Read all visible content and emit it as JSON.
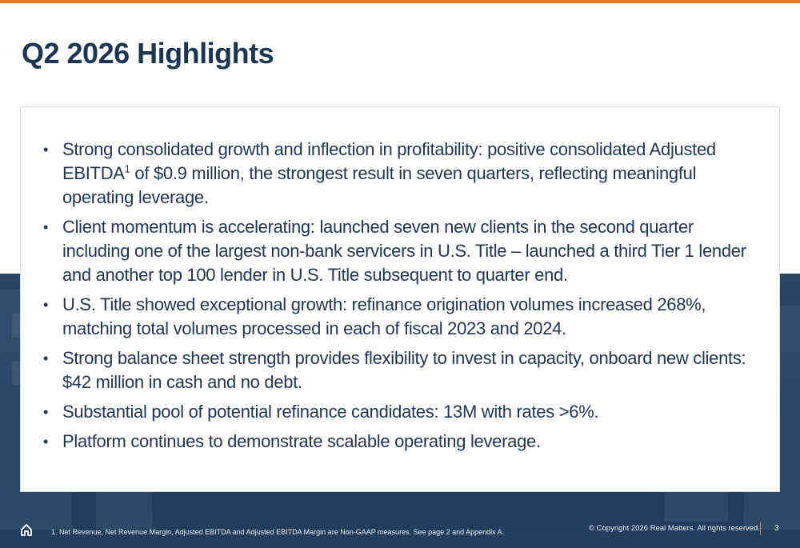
{
  "title": "Q2 2026 Highlights",
  "bullets": [
    {
      "text_before": "Strong consolidated growth and inflection in profitability: positive consolidated Adjusted EBITDA",
      "footnote_ref": "1",
      "text_after": " of $0.9 million, the strongest result in seven quarters, reflecting meaningful operating leverage."
    },
    {
      "text_before": "Client momentum is accelerating: launched seven new clients in the second quarter including one of the largest non-bank servicers in U.S. Title – launched a third Tier 1 lender and another top 100 lender in U.S. Title subsequent to quarter end.",
      "footnote_ref": "",
      "text_after": ""
    },
    {
      "text_before": "U.S. Title showed exceptional growth: refinance origination volumes increased 268%, matching total volumes processed in each of fiscal 2023 and 2024.",
      "footnote_ref": "",
      "text_after": ""
    },
    {
      "text_before": "Strong balance sheet strength provides flexibility to invest in capacity, onboard new clients: $42 million in cash and no debt.",
      "footnote_ref": "",
      "text_after": ""
    },
    {
      "text_before": "Substantial pool of potential refinance candidates: 13M with rates >6%.",
      "footnote_ref": "",
      "text_after": ""
    },
    {
      "text_before": "Platform continues to demonstrate scalable operating leverage.",
      "footnote_ref": "",
      "text_after": ""
    }
  ],
  "bullet_glyph": "•",
  "footer": {
    "footnote": "1. Net Revenue, Net Revenue Margin, Adjusted EBITDA and Adjusted EBITDA Margin are Non-GAAP measures. See page 2 and Appendix A.",
    "copyright": "© Copyright 2026 Real Matters. All rights reserved.",
    "page_number": "3",
    "home_icon": "home-icon"
  },
  "colors": {
    "accent": "#f07a28",
    "title": "#1b3553",
    "body_text": "#1f3552",
    "band": "#1f3a5c"
  }
}
